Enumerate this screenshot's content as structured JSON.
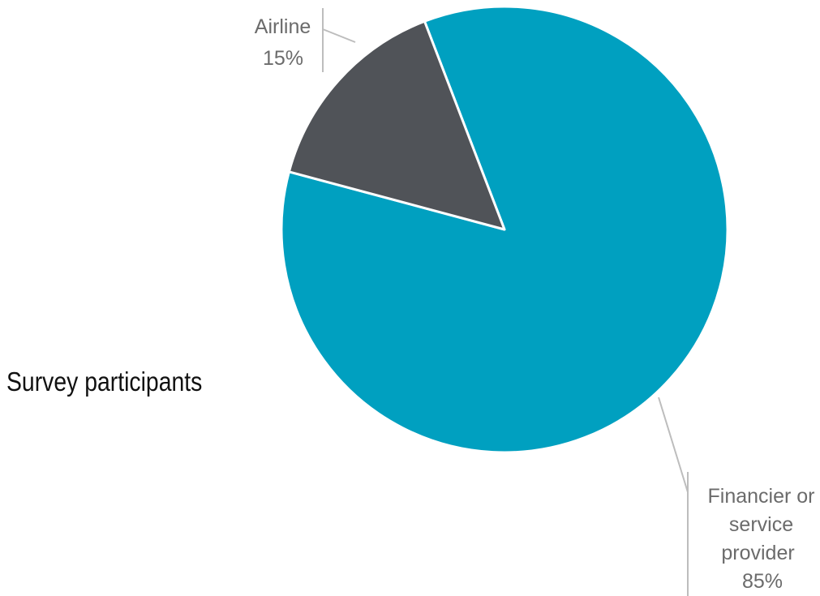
{
  "chart_data": {
    "type": "pie",
    "title": "Survey participants",
    "slices": [
      {
        "label_lines": [
          "Financier or",
          "service",
          "provider"
        ],
        "percent_label": "85%",
        "value": 85,
        "color": "#00a0c0"
      },
      {
        "label_lines": [
          "Airline"
        ],
        "percent_label": "15%",
        "value": 15,
        "color": "#505358"
      }
    ],
    "start_angle_deg": 339,
    "direction": "clockwise",
    "legend": "none",
    "slice_border_color": "#ffffff",
    "leader_line_color": "#bdbdbd"
  }
}
